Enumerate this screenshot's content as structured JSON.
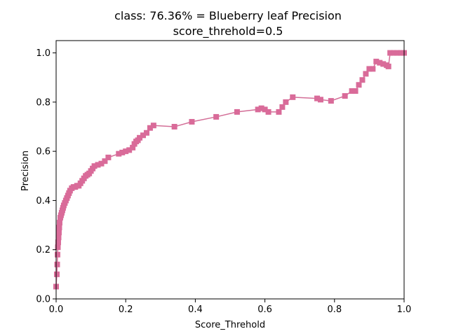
{
  "chart_data": {
    "type": "line",
    "title": "class: 76.36% = Blueberry leaf Precision",
    "subtitle": "score_threhold=0.5",
    "xlabel": "Score_Threhold",
    "ylabel": "Precision",
    "xlim": [
      0.0,
      1.0
    ],
    "ylim": [
      0.0,
      1.05
    ],
    "x_ticks": [
      "0.0",
      "0.2",
      "0.4",
      "0.6",
      "0.8",
      "1.0"
    ],
    "y_ticks": [
      "0.0",
      "0.2",
      "0.4",
      "0.6",
      "0.8",
      "1.0"
    ],
    "grid": false,
    "legend": false,
    "marker": "square",
    "line_color": "#d36e97",
    "marker_color": "#d96b99",
    "series": [
      {
        "x": [
          0.0,
          0.002,
          0.003,
          0.004,
          0.005,
          0.006,
          0.007,
          0.008,
          0.009,
          0.01,
          0.012,
          0.014,
          0.016,
          0.018,
          0.02,
          0.022,
          0.025,
          0.028,
          0.031,
          0.034,
          0.037,
          0.04,
          0.045,
          0.05,
          0.055,
          0.06,
          0.065,
          0.07,
          0.075,
          0.08,
          0.085,
          0.09,
          0.095,
          0.1,
          0.105,
          0.11,
          0.12,
          0.13,
          0.14,
          0.15,
          0.18,
          0.19,
          0.2,
          0.21,
          0.22,
          0.225,
          0.23,
          0.235,
          0.24,
          0.25,
          0.26,
          0.27,
          0.28,
          0.34,
          0.39,
          0.46,
          0.52,
          0.58,
          0.59,
          0.6,
          0.61,
          0.64,
          0.65,
          0.66,
          0.68,
          0.75,
          0.76,
          0.79,
          0.83,
          0.85,
          0.86,
          0.87,
          0.88,
          0.89,
          0.9,
          0.91,
          0.92,
          0.93,
          0.94,
          0.95,
          0.955,
          0.96,
          0.97,
          0.98,
          0.99,
          1.0
        ],
        "y": [
          0.05,
          0.1,
          0.14,
          0.18,
          0.21,
          0.23,
          0.25,
          0.27,
          0.29,
          0.31,
          0.33,
          0.34,
          0.35,
          0.36,
          0.37,
          0.38,
          0.39,
          0.4,
          0.41,
          0.42,
          0.43,
          0.44,
          0.45,
          0.455,
          0.455,
          0.46,
          0.46,
          0.47,
          0.48,
          0.49,
          0.5,
          0.505,
          0.51,
          0.52,
          0.53,
          0.54,
          0.545,
          0.55,
          0.56,
          0.575,
          0.59,
          0.595,
          0.6,
          0.605,
          0.615,
          0.63,
          0.64,
          0.645,
          0.655,
          0.665,
          0.675,
          0.695,
          0.705,
          0.7,
          0.72,
          0.74,
          0.76,
          0.77,
          0.775,
          0.77,
          0.76,
          0.76,
          0.78,
          0.8,
          0.82,
          0.815,
          0.81,
          0.805,
          0.825,
          0.845,
          0.845,
          0.87,
          0.89,
          0.915,
          0.935,
          0.935,
          0.965,
          0.96,
          0.955,
          0.95,
          0.945,
          1.0,
          1.0,
          1.0,
          1.0,
          1.0
        ]
      }
    ]
  }
}
